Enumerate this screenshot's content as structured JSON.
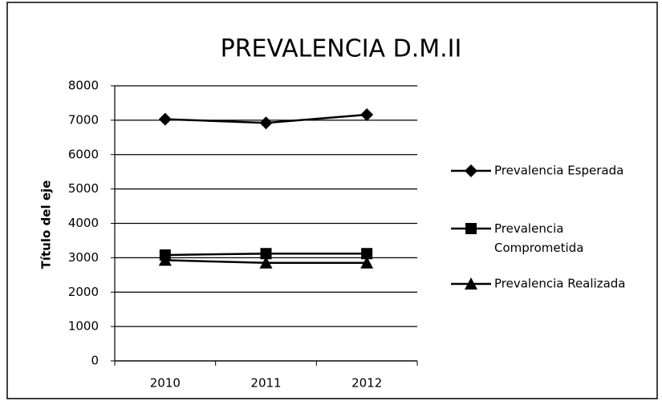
{
  "chart_data": {
    "type": "line",
    "title": "PREVALENCIA D.M.II",
    "ylabel": "Título del eje",
    "categories": [
      "2010",
      "2011",
      "2012"
    ],
    "series": [
      {
        "name": "Prevalencia Esperada",
        "color": "#000000",
        "marker": "diamond",
        "values": [
          7030,
          6920,
          7160
        ]
      },
      {
        "name": "Prevalencia Comprometida",
        "color": "#000000",
        "marker": "square",
        "values": [
          3080,
          3120,
          3120
        ]
      },
      {
        "name": "Prevalencia Realizada",
        "color": "#000000",
        "marker": "triangle",
        "values": [
          2930,
          2850,
          2850
        ]
      }
    ],
    "ylim": [
      0,
      8000
    ],
    "yticks": [
      0,
      1000,
      2000,
      3000,
      4000,
      5000,
      6000,
      7000,
      8000
    ],
    "grid": true,
    "legend": "right"
  }
}
